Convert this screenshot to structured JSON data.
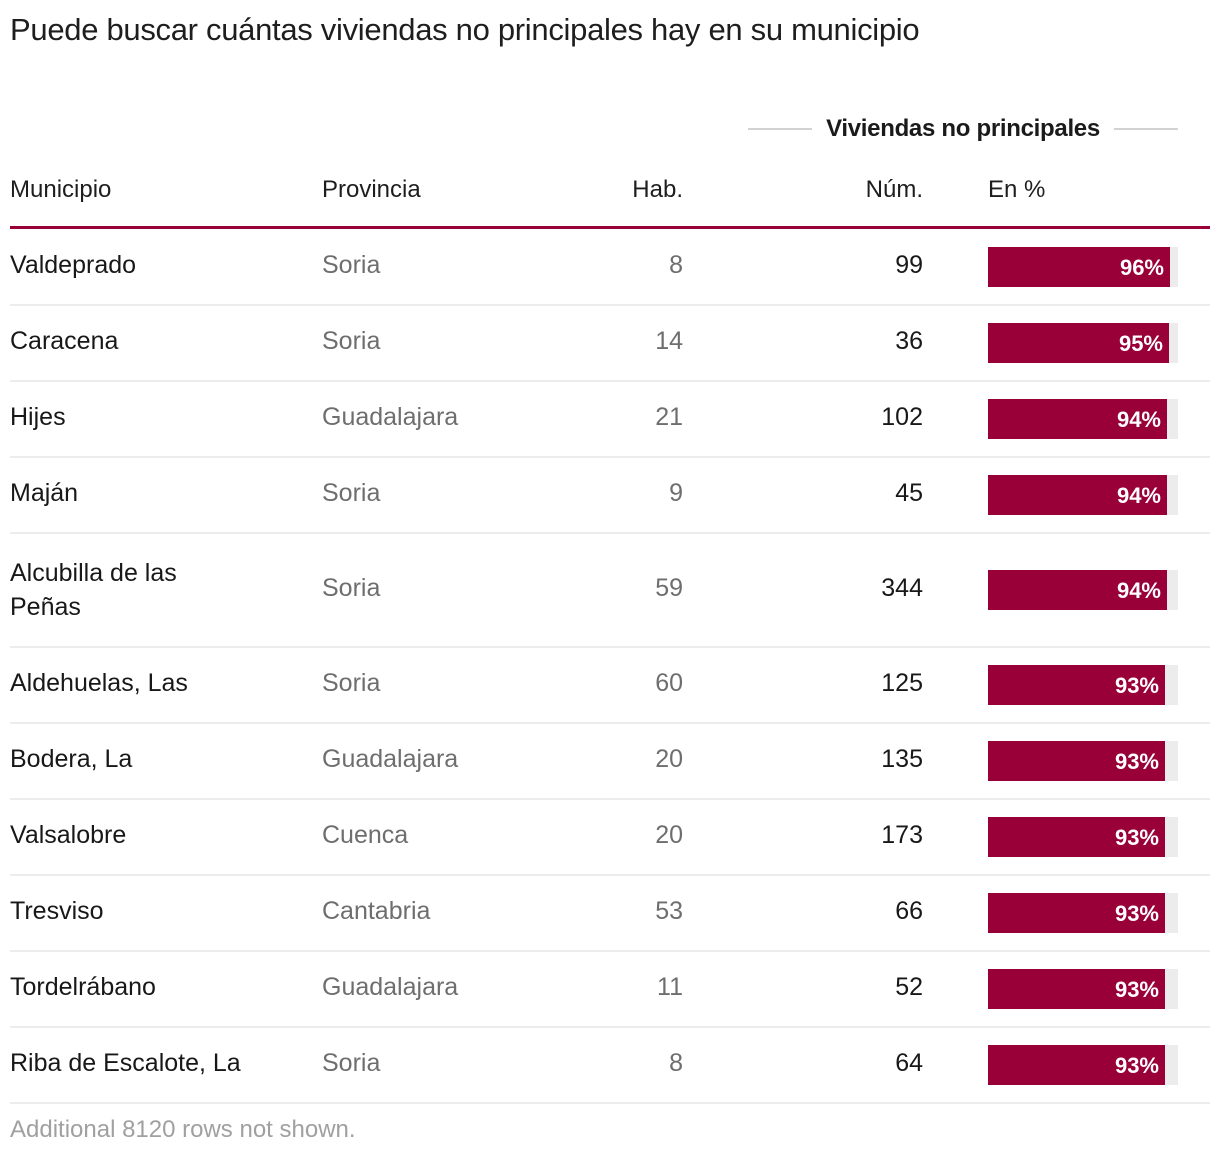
{
  "title": "Puede buscar cuántas viviendas no principales hay en su municipio",
  "group_header": "Viviendas no principales",
  "columns": {
    "municipio": "Municipio",
    "provincia": "Provincia",
    "hab": "Hab.",
    "num": "Núm.",
    "pct": "En %"
  },
  "colors": {
    "accent": "#990038",
    "track": "#ececec"
  },
  "footer": "Additional 8120 rows not shown.",
  "chart_data": {
    "type": "table",
    "title": "Puede buscar cuántas viviendas no principales hay en su municipio",
    "columns": [
      "Municipio",
      "Provincia",
      "Hab.",
      "Núm.",
      "En %"
    ],
    "pct_range": [
      0,
      100
    ],
    "rows": [
      {
        "municipio": "Valdeprado",
        "provincia": "Soria",
        "hab": "8",
        "num": "99",
        "pct": 96,
        "pct_label": "96%"
      },
      {
        "municipio": "Caracena",
        "provincia": "Soria",
        "hab": "14",
        "num": "36",
        "pct": 95,
        "pct_label": "95%"
      },
      {
        "municipio": "Hijes",
        "provincia": "Guadalajara",
        "hab": "21",
        "num": "102",
        "pct": 94,
        "pct_label": "94%"
      },
      {
        "municipio": "Maján",
        "provincia": "Soria",
        "hab": "9",
        "num": "45",
        "pct": 94,
        "pct_label": "94%"
      },
      {
        "municipio": "Alcubilla de las Peñas",
        "provincia": "Soria",
        "hab": "59",
        "num": "344",
        "pct": 94,
        "pct_label": "94%"
      },
      {
        "municipio": "Aldehuelas, Las",
        "provincia": "Soria",
        "hab": "60",
        "num": "125",
        "pct": 93,
        "pct_label": "93%"
      },
      {
        "municipio": "Bodera, La",
        "provincia": "Guadalajara",
        "hab": "20",
        "num": "135",
        "pct": 93,
        "pct_label": "93%"
      },
      {
        "municipio": "Valsalobre",
        "provincia": "Cuenca",
        "hab": "20",
        "num": "173",
        "pct": 93,
        "pct_label": "93%"
      },
      {
        "municipio": "Tresviso",
        "provincia": "Cantabria",
        "hab": "53",
        "num": "66",
        "pct": 93,
        "pct_label": "93%"
      },
      {
        "municipio": "Tordelrábano",
        "provincia": "Guadalajara",
        "hab": "11",
        "num": "52",
        "pct": 93,
        "pct_label": "93%"
      },
      {
        "municipio": "Riba de Escalote, La",
        "provincia": "Soria",
        "hab": "8",
        "num": "64",
        "pct": 93,
        "pct_label": "93%"
      }
    ]
  }
}
